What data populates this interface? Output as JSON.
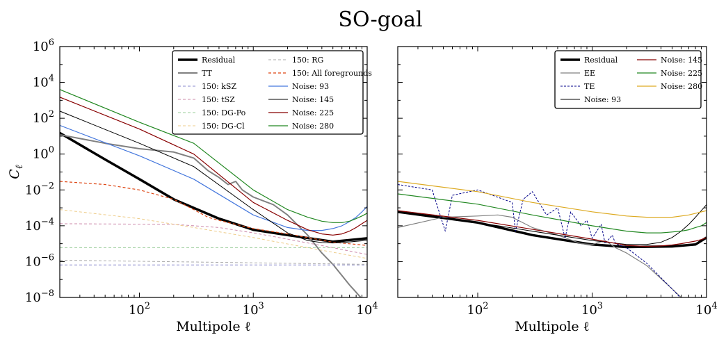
{
  "figure": {
    "title": "SO-goal"
  },
  "chart_data": [
    {
      "type": "line",
      "panel": "left",
      "xlabel": "Multipole ℓ",
      "ylabel": "C_ℓ",
      "xscale": "log",
      "yscale": "log",
      "xlim": [
        20,
        10000
      ],
      "ylim": [
        1e-08,
        1000000.0
      ],
      "xticks": [
        100,
        1000,
        10000
      ],
      "xtick_labels": [
        {
          "base": "10",
          "exp": "2"
        },
        {
          "base": "10",
          "exp": "3"
        },
        {
          "base": "10",
          "exp": "4"
        }
      ],
      "yticks": [
        1e-08,
        1e-06,
        0.0001,
        0.01,
        1,
        100,
        10000,
        1000000.0
      ],
      "ytick_labels": [
        {
          "base": "10",
          "exp": "−8"
        },
        {
          "base": "10",
          "exp": "−6"
        },
        {
          "base": "10",
          "exp": "−4"
        },
        {
          "base": "10",
          "exp": "−2"
        },
        {
          "base": "10",
          "exp": "0"
        },
        {
          "base": "10",
          "exp": "2"
        },
        {
          "base": "10",
          "exp": "4"
        },
        {
          "base": "10",
          "exp": "6"
        }
      ],
      "legend": {
        "position": "top-right",
        "columns": 2
      },
      "series": [
        {
          "name": "Residual",
          "color": "#000000",
          "width": 3.5,
          "dash": "",
          "x": [
            20,
            50,
            100,
            200,
            500,
            1000,
            2000,
            5000,
            10000
          ],
          "y": [
            15,
            0.5,
            0.04,
            0.003,
            0.00025,
            6e-05,
            3e-05,
            1.3e-05,
            2e-05
          ]
        },
        {
          "name": "TT",
          "color": "#808080",
          "width": 2,
          "dash": "",
          "x": [
            20,
            50,
            100,
            200,
            300,
            400,
            500,
            600,
            700,
            800,
            1000,
            1500,
            2000,
            3000,
            4000,
            5000,
            7000,
            10000
          ],
          "y": [
            12,
            4,
            2,
            1.3,
            0.6,
            0.12,
            0.05,
            0.02,
            0.03,
            0.01,
            0.004,
            0.0015,
            0.0004,
            3e-05,
            3e-06,
            7e-07,
            5e-08,
            4e-09
          ]
        },
        {
          "name": "150: kSZ",
          "color": "#8888cc",
          "width": 1,
          "dash": "4,3",
          "x": [
            20,
            10000
          ],
          "y": [
            6.5e-07,
            6.5e-07
          ]
        },
        {
          "name": "150: tSZ",
          "color": "#cc88aa",
          "width": 1,
          "dash": "4,3",
          "x": [
            20,
            200,
            500,
            1000,
            2000,
            5000,
            10000
          ],
          "y": [
            0.00013,
            0.00012,
            8e-05,
            4e-05,
            1.8e-05,
            6e-06,
            2.5e-06
          ]
        },
        {
          "name": "150: DG-Po",
          "color": "#99cc99",
          "width": 1,
          "dash": "4,3",
          "x": [
            20,
            10000
          ],
          "y": [
            6e-06,
            6e-06
          ]
        },
        {
          "name": "150: DG-Cl",
          "color": "#eecc88",
          "width": 1,
          "dash": "4,3",
          "x": [
            20,
            100,
            300,
            1000,
            3000,
            10000
          ],
          "y": [
            0.0008,
            0.00025,
            8e-05,
            2.2e-05,
            6e-06,
            1.5e-06
          ]
        },
        {
          "name": "150: RG",
          "color": "#aaaaaa",
          "width": 1,
          "dash": "4,3",
          "x": [
            20,
            10000
          ],
          "y": [
            1.2e-06,
            7e-07
          ]
        },
        {
          "name": "150: All foregrounds",
          "color": "#dd4411",
          "width": 1.2,
          "dash": "4,3",
          "x": [
            20,
            50,
            100,
            200,
            300,
            400,
            500,
            700,
            1000,
            2000,
            3000,
            5000,
            10000
          ],
          "y": [
            0.03,
            0.02,
            0.01,
            0.003,
            0.0008,
            0.0003,
            0.0002,
            0.00012,
            7e-05,
            3.5e-05,
            2.2e-05,
            1.2e-05,
            8e-06
          ]
        },
        {
          "name": "Noise: 93",
          "color": "#4477dd",
          "width": 1.2,
          "dash": "",
          "x": [
            20,
            100,
            300,
            1000,
            2000,
            3000,
            4000,
            5000,
            6000,
            7000,
            8000,
            9000,
            10000
          ],
          "y": [
            40,
            0.8,
            0.04,
            0.0004,
            8e-05,
            5.5e-05,
            5.5e-05,
            7e-05,
            0.0001,
            0.00017,
            0.0003,
            0.0006,
            0.0012
          ]
        },
        {
          "name": "Noise: 145",
          "color": "#000000",
          "width": 1,
          "dash": "",
          "x": [
            20,
            100,
            300,
            1000,
            2000,
            3000,
            4000,
            5000,
            6000,
            7000,
            8000,
            9000,
            10000
          ],
          "y": [
            250,
            4,
            0.2,
            0.0008,
            4e-05,
            1.5e-05,
            1.15e-05,
            1.1e-05,
            1.15e-05,
            1.25e-05,
            1.35e-05,
            1.45e-05,
            1.6e-05
          ]
        },
        {
          "name": "Noise: 225",
          "color": "#880000",
          "width": 1.2,
          "dash": "",
          "x": [
            20,
            100,
            300,
            1000,
            2000,
            3000,
            4000,
            5000,
            6000,
            7000,
            8000,
            9000,
            10000
          ],
          "y": [
            1500,
            25,
            1,
            0.002,
            0.0002,
            6e-05,
            3.5e-05,
            3e-05,
            3.5e-05,
            5e-05,
            8e-05,
            0.00013,
            0.0002
          ]
        },
        {
          "name": "Noise: 280",
          "color": "#228822",
          "width": 1.2,
          "dash": "",
          "x": [
            20,
            100,
            300,
            1000,
            2000,
            3000,
            4000,
            5000,
            6000,
            7000,
            8000,
            9000,
            10000
          ],
          "y": [
            4000,
            60,
            4,
            0.01,
            0.0008,
            0.0003,
            0.00018,
            0.00015,
            0.00015,
            0.00018,
            0.00025,
            0.00035,
            0.0005
          ]
        }
      ]
    },
    {
      "type": "line",
      "panel": "right",
      "xlabel": "Multipole ℓ",
      "ylabel": "",
      "xscale": "log",
      "yscale": "log",
      "xlim": [
        20,
        10000
      ],
      "ylim": [
        1e-08,
        1000000.0
      ],
      "xticks": [
        100,
        1000,
        10000
      ],
      "xtick_labels": [
        {
          "base": "10",
          "exp": "2"
        },
        {
          "base": "10",
          "exp": "3"
        },
        {
          "base": "10",
          "exp": "4"
        }
      ],
      "yticks": [
        1e-08,
        1e-06,
        0.0001,
        0.01,
        1,
        100,
        10000,
        1000000.0
      ],
      "legend": {
        "position": "top-right",
        "columns": 2
      },
      "series": [
        {
          "name": "Residual",
          "color": "#000000",
          "width": 3.5,
          "dash": "",
          "x": [
            20,
            100,
            300,
            1000,
            2000,
            5000,
            8000,
            10000
          ],
          "y": [
            0.0006,
            0.00015,
            3e-05,
            9e-06,
            6.5e-06,
            7e-06,
            9e-06,
            2.2e-05
          ]
        },
        {
          "name": "EE",
          "color": "#808080",
          "width": 1.2,
          "dash": "",
          "x": [
            20,
            50,
            100,
            150,
            200,
            300,
            500,
            800,
            1000,
            1300,
            1600,
            2000,
            3000,
            5000,
            7000
          ],
          "y": [
            8e-05,
            0.0003,
            0.00035,
            0.0004,
            0.0003,
            8e-05,
            3e-05,
            1e-05,
            9e-06,
            1.5e-05,
            6e-06,
            3e-06,
            6e-07,
            3e-08,
            4e-09
          ]
        },
        {
          "name": "TE",
          "color": "#000088",
          "width": 1,
          "dash": "3,2",
          "x": [
            20,
            40,
            52,
            60,
            100,
            200,
            214,
            250,
            300,
            400,
            500,
            580,
            650,
            800,
            900,
            1000,
            1200,
            1300,
            1500,
            1600,
            2000,
            3000,
            5000,
            7000
          ],
          "y": [
            0.02,
            0.01,
            5e-05,
            0.005,
            0.01,
            0.002,
            5e-05,
            0.003,
            0.008,
            0.0004,
            0.001,
            2e-05,
            0.0006,
            0.0001,
            0.0002,
            2e-05,
            0.00012,
            1e-05,
            3e-05,
            1e-05,
            6e-06,
            8e-07,
            3e-08,
            3e-09
          ]
        },
        {
          "name": "Noise: 93",
          "color": "#000000",
          "width": 1,
          "dash": "",
          "x": [
            20,
            100,
            1000,
            2000,
            3000,
            4000,
            5000,
            6000,
            7000,
            8000,
            9000,
            10000
          ],
          "y": [
            0.0006,
            0.00015,
            1.5e-05,
            9e-06,
            9e-06,
            1.2e-05,
            2.2e-05,
            5e-05,
            0.00012,
            0.0003,
            0.0007,
            0.0015
          ]
        },
        {
          "name": "Noise: 145",
          "color": "#880000",
          "width": 1.2,
          "dash": "",
          "x": [
            20,
            100,
            1000,
            2000,
            3000,
            4000,
            5000,
            6000,
            7000,
            8000,
            9000,
            10000
          ],
          "y": [
            0.0007,
            0.0002,
            1.8e-05,
            8e-06,
            7e-06,
            7.5e-06,
            8.5e-06,
            1e-05,
            1.2e-05,
            1.4e-05,
            1.7e-05,
            2.2e-05
          ]
        },
        {
          "name": "Noise: 225",
          "color": "#228822",
          "width": 1.2,
          "dash": "",
          "x": [
            20,
            100,
            300,
            1000,
            2000,
            3000,
            4000,
            5000,
            6000,
            7000,
            8000,
            9000,
            10000
          ],
          "y": [
            0.006,
            0.0016,
            0.0004,
            0.0001,
            5e-05,
            4e-05,
            4e-05,
            4.5e-05,
            5e-05,
            6e-05,
            8e-05,
            0.0001,
            0.00015
          ]
        },
        {
          "name": "Noise: 280",
          "color": "#ddaa22",
          "width": 1.2,
          "dash": "",
          "x": [
            20,
            100,
            300,
            1000,
            2000,
            3000,
            5000,
            7000,
            10000
          ],
          "y": [
            0.03,
            0.008,
            0.002,
            0.0006,
            0.00035,
            0.0003,
            0.0003,
            0.0004,
            0.0007
          ]
        }
      ]
    }
  ]
}
